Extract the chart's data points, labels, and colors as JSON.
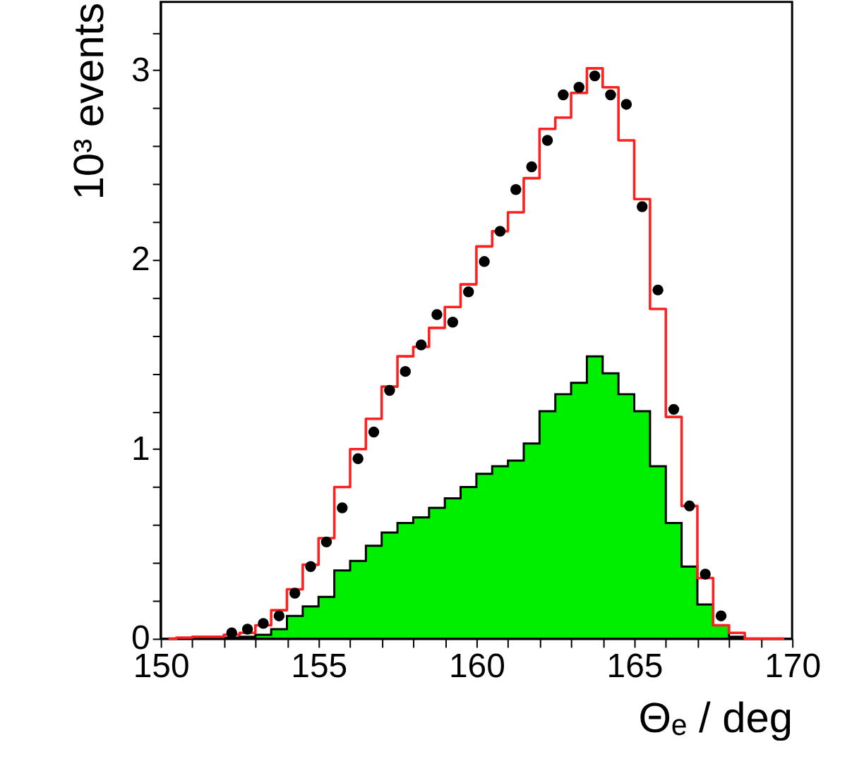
{
  "chart_data": {
    "type": "step",
    "xlabel": "Θₑ / deg",
    "ylabel": "10³ events",
    "series": [
      {
        "type": "area",
        "color": "#00ee00",
        "x": [
          150.25,
          150.75,
          151.25,
          151.75,
          152.25,
          152.75,
          153.25,
          153.75,
          154.25,
          154.75,
          155.25,
          155.75,
          156.25,
          156.75,
          157.25,
          157.75,
          158.25,
          158.75,
          159.25,
          159.75,
          160.25,
          160.75,
          161.25,
          161.75,
          162.25,
          162.75,
          163.25,
          163.75,
          164.25,
          164.75,
          165.25,
          165.75,
          166.25,
          166.75,
          167.25,
          167.75,
          168.25,
          168.75,
          169.25,
          169.75
        ],
        "values": [
          0,
          0,
          0,
          0,
          0.005,
          0.01,
          0.02,
          0.05,
          0.12,
          0.17,
          0.22,
          0.36,
          0.41,
          0.49,
          0.56,
          0.61,
          0.64,
          0.69,
          0.74,
          0.8,
          0.87,
          0.91,
          0.94,
          1.03,
          1.2,
          1.29,
          1.35,
          1.49,
          1.4,
          1.29,
          1.2,
          0.91,
          0.61,
          0.38,
          0.18,
          0.07,
          0.01,
          0,
          0,
          0
        ]
      },
      {
        "type": "step",
        "color": "#ff2020",
        "x": [
          150.25,
          150.75,
          151.25,
          151.75,
          152.25,
          152.75,
          153.25,
          153.75,
          154.25,
          154.75,
          155.25,
          155.75,
          156.25,
          156.75,
          157.25,
          157.75,
          158.25,
          158.75,
          159.25,
          159.75,
          160.25,
          160.75,
          161.25,
          161.75,
          162.25,
          162.75,
          163.25,
          163.75,
          164.25,
          164.75,
          165.25,
          165.75,
          166.25,
          166.75,
          167.25,
          167.75,
          168.25,
          168.75,
          169.25,
          169.75
        ],
        "values": [
          0,
          0.005,
          0.01,
          0.01,
          0.02,
          0.03,
          0.07,
          0.15,
          0.26,
          0.39,
          0.53,
          0.8,
          1.0,
          1.16,
          1.33,
          1.49,
          1.54,
          1.64,
          1.75,
          1.87,
          2.07,
          2.15,
          2.25,
          2.43,
          2.69,
          2.75,
          2.88,
          3.01,
          2.91,
          2.63,
          2.32,
          1.74,
          1.17,
          0.7,
          0.32,
          0.07,
          0.03,
          0,
          0,
          0
        ]
      },
      {
        "type": "scatter",
        "color": "#000000",
        "marker": "circle",
        "x": [
          152.25,
          152.75,
          153.25,
          153.75,
          154.25,
          154.75,
          155.25,
          155.75,
          156.25,
          156.75,
          157.25,
          157.75,
          158.25,
          158.75,
          159.25,
          159.75,
          160.25,
          160.75,
          161.25,
          161.75,
          162.25,
          162.75,
          163.25,
          163.75,
          164.25,
          164.75,
          165.25,
          165.75,
          166.25,
          166.75,
          167.25,
          167.75
        ],
        "values": [
          0.03,
          0.05,
          0.08,
          0.12,
          0.24,
          0.38,
          0.51,
          0.69,
          0.95,
          1.09,
          1.31,
          1.41,
          1.55,
          1.71,
          1.67,
          1.83,
          1.99,
          2.15,
          2.37,
          2.49,
          2.63,
          2.87,
          2.91,
          2.97,
          2.87,
          2.82,
          2.28,
          1.84,
          1.21,
          0.7,
          0.34,
          0.12
        ]
      }
    ],
    "xlim": [
      150,
      170
    ],
    "xticks": [
      150,
      {
        "value": 151,
        "label": null
      },
      {
        "value": 152,
        "label": null
      },
      {
        "value": 153,
        "label": null
      },
      {
        "value": 154,
        "label": null
      },
      155,
      {
        "value": 156,
        "label": null
      },
      {
        "value": 157,
        "label": null
      },
      {
        "value": 158,
        "label": null
      },
      {
        "value": 159,
        "label": null
      },
      160,
      {
        "value": 161,
        "label": null
      },
      {
        "value": 162,
        "label": null
      },
      {
        "value": 163,
        "label": null
      },
      {
        "value": 164,
        "label": null
      },
      165,
      {
        "value": 166,
        "label": null
      },
      {
        "value": 167,
        "label": null
      },
      {
        "value": 168,
        "label": null
      },
      {
        "value": 169,
        "label": null
      },
      170
    ],
    "ylim": [
      0,
      3.36
    ],
    "yticks": [
      0,
      {
        "value": 0.2,
        "label": null
      },
      {
        "value": 0.4,
        "label": null
      },
      {
        "value": 0.6,
        "label": null
      },
      {
        "value": 0.8,
        "label": null
      },
      1,
      {
        "value": 1.2,
        "label": null
      },
      {
        "value": 1.4,
        "label": null
      },
      {
        "value": 1.6,
        "label": null
      },
      {
        "value": 1.8,
        "label": null
      },
      2,
      {
        "value": 2.2,
        "label": null
      },
      {
        "value": 2.4,
        "label": null
      },
      {
        "value": 2.6,
        "label": null
      },
      {
        "value": 2.8,
        "label": null
      },
      3,
      {
        "value": 3.2,
        "label": null
      }
    ],
    "grid": false
  }
}
